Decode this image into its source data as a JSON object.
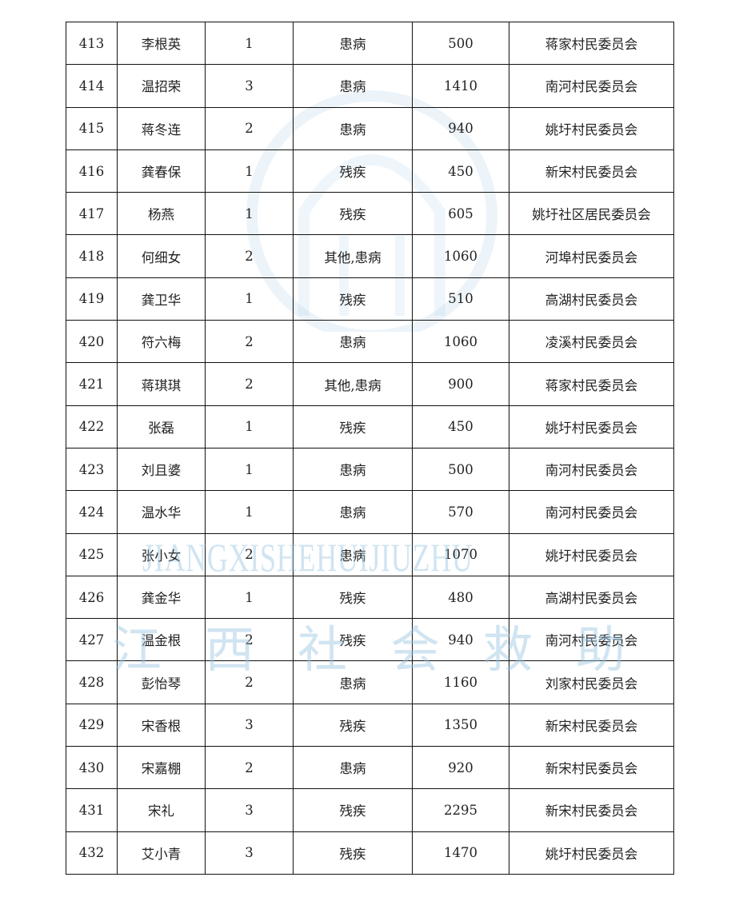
{
  "watermark": {
    "latin": "JIANGXISHEHUIJIUZHU",
    "chinese": "江西社会救助",
    "color": "#96c3e1"
  },
  "rows": [
    [
      "413",
      "李根英",
      "1",
      "患病",
      "500",
      "蒋家村民委员会"
    ],
    [
      "414",
      "温招荣",
      "3",
      "患病",
      "1410",
      "南河村民委员会"
    ],
    [
      "415",
      "蒋冬连",
      "2",
      "患病",
      "940",
      "姚圩村民委员会"
    ],
    [
      "416",
      "龚春保",
      "1",
      "残疾",
      "450",
      "新宋村民委员会"
    ],
    [
      "417",
      "杨燕",
      "1",
      "残疾",
      "605",
      "姚圩社区居民委员会"
    ],
    [
      "418",
      "何细女",
      "2",
      "其他,患病",
      "1060",
      "河埠村民委员会"
    ],
    [
      "419",
      "龚卫华",
      "1",
      "残疾",
      "510",
      "高湖村民委员会"
    ],
    [
      "420",
      "符六梅",
      "2",
      "患病",
      "1060",
      "凌溪村民委员会"
    ],
    [
      "421",
      "蒋琪琪",
      "2",
      "其他,患病",
      "900",
      "蒋家村民委员会"
    ],
    [
      "422",
      "张磊",
      "1",
      "残疾",
      "450",
      "姚圩村民委员会"
    ],
    [
      "423",
      "刘且婆",
      "1",
      "患病",
      "500",
      "南河村民委员会"
    ],
    [
      "424",
      "温水华",
      "1",
      "患病",
      "570",
      "南河村民委员会"
    ],
    [
      "425",
      "张小女",
      "2",
      "患病",
      "1070",
      "姚圩村民委员会"
    ],
    [
      "426",
      "龚金华",
      "1",
      "残疾",
      "480",
      "高湖村民委员会"
    ],
    [
      "427",
      "温金根",
      "2",
      "残疾",
      "940",
      "南河村民委员会"
    ],
    [
      "428",
      "彭怡琴",
      "2",
      "患病",
      "1160",
      "刘家村民委员会"
    ],
    [
      "429",
      "宋香根",
      "3",
      "残疾",
      "1350",
      "新宋村民委员会"
    ],
    [
      "430",
      "宋嘉棚",
      "2",
      "患病",
      "920",
      "新宋村民委员会"
    ],
    [
      "431",
      "宋礼",
      "3",
      "残疾",
      "2295",
      "新宋村民委员会"
    ],
    [
      "432",
      "艾小青",
      "3",
      "残疾",
      "1470",
      "姚圩村民委员会"
    ]
  ]
}
